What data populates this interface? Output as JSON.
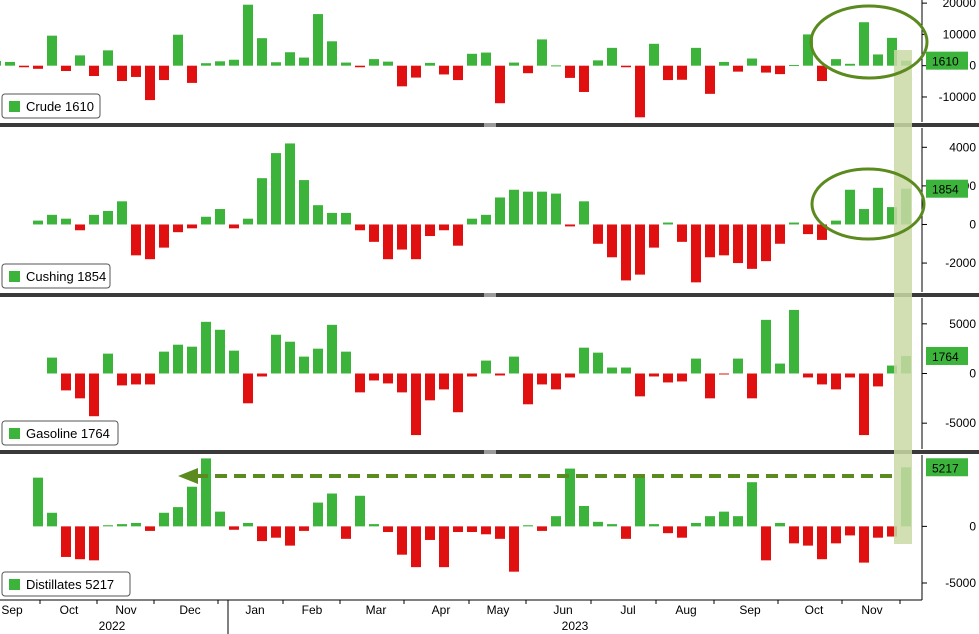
{
  "colors": {
    "positive": "#3cb43c",
    "negative": "#e01010",
    "badge_bg": "#3cb43c",
    "highlight": "#c9d9a6",
    "annotation": "#5b8a1e",
    "separator": "#3a3a3a"
  },
  "x_axis": {
    "months": [
      "Sep",
      "Oct",
      "Nov",
      "Dec",
      "Jan",
      "Feb",
      "Mar",
      "Apr",
      "May",
      "Jun",
      "Jul",
      "Aug",
      "Sep",
      "Oct",
      "Nov"
    ],
    "years": [
      "2022",
      "2023"
    ]
  },
  "chart_data": [
    {
      "type": "bar",
      "panel": "crude",
      "legend_label": "Crude",
      "legend_value": "1610",
      "badge": "1610",
      "ticks": [
        "20000",
        "10000",
        "0",
        "-10000"
      ],
      "ylim": [
        -18000,
        21000
      ],
      "values": [
        1500,
        1200,
        -500,
        -1000,
        9600,
        -1700,
        3300,
        -3300,
        4900,
        -4900,
        -3600,
        -11000,
        -4600,
        9900,
        -5500,
        800,
        1400,
        1900,
        19500,
        8800,
        1100,
        4300,
        2600,
        16500,
        7800,
        1000,
        -500,
        2100,
        1300,
        -6600,
        -3800,
        900,
        -2800,
        -4600,
        3800,
        4200,
        -12000,
        1000,
        -2400,
        8400,
        100,
        -3900,
        -8400,
        1700,
        5700,
        -500,
        -16500,
        7000,
        -4600,
        -4500,
        5700,
        -9000,
        1200,
        -1900,
        2300,
        -2200,
        -2700,
        200,
        10000,
        -4900,
        2100,
        600,
        13900,
        3600,
        8900,
        1600
      ]
    },
    {
      "type": "bar",
      "panel": "cushing",
      "legend_label": "Cushing",
      "legend_value": "1854",
      "badge": "1854",
      "ticks": [
        "4000",
        "2000",
        "0",
        "-2000"
      ],
      "ylim": [
        -3500,
        5000
      ],
      "values": [
        200,
        500,
        300,
        -300,
        500,
        700,
        1200,
        -1600,
        -1800,
        -1200,
        -400,
        -200,
        400,
        800,
        -200,
        300,
        2400,
        3700,
        4200,
        2300,
        1000,
        600,
        600,
        -300,
        -900,
        -1800,
        -1300,
        -1800,
        -600,
        -300,
        -1100,
        300,
        500,
        1400,
        1800,
        1700,
        1700,
        1600,
        -100,
        1200,
        -1000,
        -1700,
        -2900,
        -2600,
        -1200,
        100,
        -900,
        -3000,
        -1700,
        -1600,
        -2000,
        -2300,
        -1900,
        -1000,
        100,
        -500,
        -800,
        200,
        1800,
        800,
        1900,
        900,
        1854
      ]
    },
    {
      "type": "bar",
      "panel": "gasoline",
      "legend_label": "Gasoline",
      "legend_value": "1764",
      "badge": "1764",
      "ticks": [
        "5000",
        "0",
        "-5000"
      ],
      "ylim": [
        -7600,
        7600
      ],
      "values": [
        1600,
        -1700,
        -2500,
        -4300,
        2000,
        -1200,
        -1100,
        -1100,
        2200,
        2900,
        2700,
        5200,
        4400,
        2300,
        -3000,
        -300,
        3900,
        3200,
        1700,
        2500,
        4900,
        2200,
        -1900,
        -700,
        -1000,
        -1900,
        -6200,
        -2700,
        -1600,
        -3900,
        -300,
        1300,
        -200,
        1700,
        -3100,
        -1100,
        -1600,
        -400,
        2600,
        2100,
        600,
        600,
        -2300,
        -300,
        -900,
        -800,
        1500,
        -2500,
        -100,
        1500,
        -2500,
        5400,
        1000,
        6400,
        -400,
        -1100,
        -1600,
        -400,
        -6200,
        -1300,
        800,
        1764
      ]
    },
    {
      "type": "bar",
      "panel": "distillates",
      "legend_label": "Distillates",
      "legend_value": "5217",
      "badge": "5217",
      "ticks": [
        "0",
        "-5000"
      ],
      "ylim": [
        -6500,
        6300
      ],
      "values": [
        4300,
        1200,
        -2700,
        -2900,
        -3000,
        100,
        200,
        300,
        -400,
        1200,
        1700,
        3500,
        6000,
        1300,
        -300,
        300,
        -1300,
        -1000,
        -1700,
        -400,
        2100,
        2900,
        -1100,
        2700,
        200,
        -500,
        -2500,
        -3600,
        -1200,
        -3600,
        -500,
        -500,
        -700,
        -1100,
        -4000,
        100,
        -400,
        900,
        5100,
        1800,
        400,
        200,
        -1100,
        4600,
        200,
        -600,
        -1000,
        300,
        900,
        1300,
        900,
        3900,
        -3000,
        300,
        -1500,
        -1700,
        -2900,
        -1500,
        -800,
        -3200,
        -1000,
        -900,
        5217
      ]
    }
  ]
}
